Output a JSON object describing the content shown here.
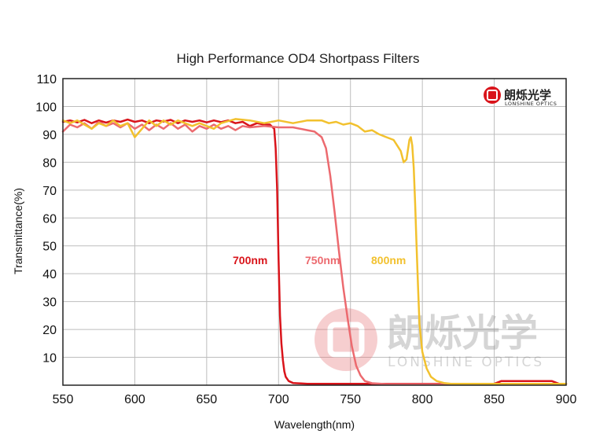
{
  "chart_data": {
    "type": "line",
    "title": "High Performance OD4 Shortpass Filters",
    "xlabel": "Wavelength(nm)",
    "ylabel": "Transmittance(%)",
    "xlim": [
      550,
      900
    ],
    "ylim": [
      0,
      110
    ],
    "xticks": [
      550,
      600,
      650,
      700,
      750,
      800,
      850,
      900
    ],
    "yticks": [
      10,
      20,
      30,
      40,
      50,
      60,
      70,
      80,
      90,
      100,
      110
    ],
    "grid": true,
    "series": [
      {
        "name": "700nm",
        "color": "#d9141b",
        "points": [
          [
            550,
            94.5
          ],
          [
            555,
            95
          ],
          [
            560,
            94.3
          ],
          [
            565,
            95.2
          ],
          [
            570,
            94
          ],
          [
            575,
            95
          ],
          [
            580,
            94.2
          ],
          [
            585,
            95
          ],
          [
            590,
            94.5
          ],
          [
            595,
            95.3
          ],
          [
            600,
            94.5
          ],
          [
            605,
            95
          ],
          [
            610,
            94
          ],
          [
            615,
            95
          ],
          [
            620,
            94.6
          ],
          [
            625,
            95.2
          ],
          [
            630,
            94
          ],
          [
            635,
            95
          ],
          [
            640,
            94.5
          ],
          [
            645,
            95
          ],
          [
            650,
            94.3
          ],
          [
            655,
            95
          ],
          [
            660,
            94.4
          ],
          [
            665,
            95
          ],
          [
            670,
            94
          ],
          [
            675,
            94.5
          ],
          [
            680,
            93
          ],
          [
            685,
            94
          ],
          [
            690,
            93.5
          ],
          [
            694,
            93.5
          ],
          [
            697,
            92
          ],
          [
            698,
            85
          ],
          [
            699,
            70
          ],
          [
            700,
            45
          ],
          [
            701,
            25
          ],
          [
            702,
            15
          ],
          [
            703,
            9
          ],
          [
            704,
            5
          ],
          [
            705,
            3
          ],
          [
            707,
            1.5
          ],
          [
            710,
            0.8
          ],
          [
            720,
            0.5
          ],
          [
            750,
            0.5
          ],
          [
            800,
            0.5
          ],
          [
            850,
            0.5
          ],
          [
            855,
            1.5
          ],
          [
            890,
            1.5
          ],
          [
            895,
            0.5
          ],
          [
            900,
            0.5
          ]
        ]
      },
      {
        "name": "750nm",
        "color": "#ec6a6f",
        "points": [
          [
            550,
            91
          ],
          [
            555,
            93.5
          ],
          [
            560,
            92.5
          ],
          [
            565,
            94
          ],
          [
            570,
            92
          ],
          [
            575,
            94.5
          ],
          [
            580,
            93
          ],
          [
            585,
            94
          ],
          [
            590,
            92.5
          ],
          [
            595,
            94
          ],
          [
            600,
            92
          ],
          [
            605,
            93.5
          ],
          [
            610,
            91.5
          ],
          [
            615,
            93.5
          ],
          [
            620,
            92
          ],
          [
            625,
            94
          ],
          [
            630,
            92
          ],
          [
            635,
            93.5
          ],
          [
            640,
            91
          ],
          [
            645,
            93
          ],
          [
            650,
            92
          ],
          [
            655,
            93.5
          ],
          [
            660,
            92
          ],
          [
            665,
            93
          ],
          [
            670,
            91.5
          ],
          [
            675,
            93
          ],
          [
            680,
            92.5
          ],
          [
            690,
            93
          ],
          [
            700,
            92.5
          ],
          [
            710,
            92.5
          ],
          [
            720,
            91.5
          ],
          [
            725,
            91
          ],
          [
            730,
            89
          ],
          [
            733,
            85
          ],
          [
            736,
            75
          ],
          [
            739,
            62
          ],
          [
            742,
            48
          ],
          [
            745,
            35
          ],
          [
            748,
            24
          ],
          [
            751,
            14
          ],
          [
            754,
            7
          ],
          [
            757,
            3.5
          ],
          [
            760,
            1.5
          ],
          [
            765,
            0.7
          ],
          [
            775,
            0.4
          ],
          [
            900,
            0.4
          ]
        ]
      },
      {
        "name": "800nm",
        "color": "#f2c12e",
        "points": [
          [
            550,
            95
          ],
          [
            555,
            94
          ],
          [
            560,
            95
          ],
          [
            565,
            93.5
          ],
          [
            570,
            92
          ],
          [
            575,
            94
          ],
          [
            580,
            93
          ],
          [
            585,
            95
          ],
          [
            590,
            93
          ],
          [
            595,
            94
          ],
          [
            600,
            89
          ],
          [
            605,
            92
          ],
          [
            610,
            95
          ],
          [
            615,
            93
          ],
          [
            620,
            95
          ],
          [
            625,
            93.5
          ],
          [
            630,
            95
          ],
          [
            635,
            94
          ],
          [
            640,
            93
          ],
          [
            645,
            94
          ],
          [
            650,
            93
          ],
          [
            655,
            92
          ],
          [
            660,
            94
          ],
          [
            670,
            95.5
          ],
          [
            680,
            95
          ],
          [
            690,
            94
          ],
          [
            700,
            95
          ],
          [
            710,
            94
          ],
          [
            720,
            95
          ],
          [
            730,
            95
          ],
          [
            735,
            94
          ],
          [
            740,
            94.5
          ],
          [
            745,
            93.5
          ],
          [
            750,
            94
          ],
          [
            755,
            93
          ],
          [
            760,
            91
          ],
          [
            765,
            91.5
          ],
          [
            770,
            90
          ],
          [
            775,
            89
          ],
          [
            780,
            88
          ],
          [
            785,
            84
          ],
          [
            787,
            80
          ],
          [
            789,
            81
          ],
          [
            791,
            88
          ],
          [
            792,
            89
          ],
          [
            793,
            86
          ],
          [
            794,
            78
          ],
          [
            795,
            65
          ],
          [
            796,
            50
          ],
          [
            797,
            35
          ],
          [
            798,
            22
          ],
          [
            800,
            12
          ],
          [
            803,
            6
          ],
          [
            806,
            3
          ],
          [
            810,
            1.5
          ],
          [
            815,
            0.8
          ],
          [
            820,
            0.5
          ],
          [
            900,
            0.5
          ]
        ]
      }
    ],
    "annotations": [
      "700nm",
      "750nm",
      "800nm"
    ]
  },
  "logo": {
    "cn_text": "朗烁光学",
    "en_text": "LONSHINE OPTICS",
    "color": "#d9141b"
  },
  "watermark": {
    "cn_text": "朗烁光学",
    "en_text": "LONSHINE OPTICS"
  }
}
